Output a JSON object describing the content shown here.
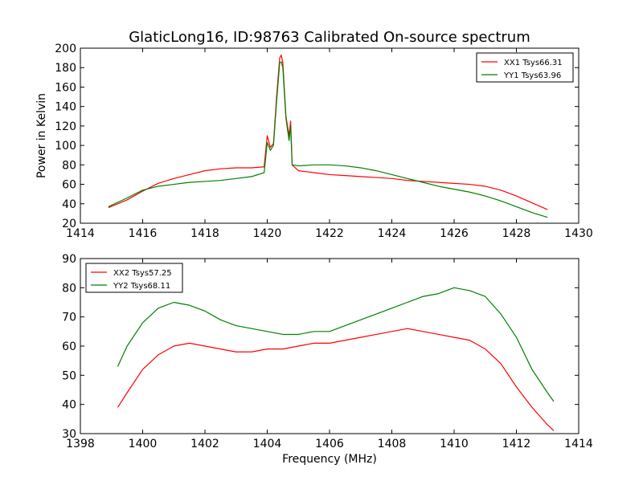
{
  "figure": {
    "title": "GlaticLong16, ID:98763 Calibrated On-source spectrum"
  },
  "chart_data": [
    {
      "type": "line",
      "title": "GlaticLong16, ID:98763 Calibrated On-source spectrum",
      "xlabel": "",
      "ylabel": "Power in Kelvin",
      "xlim": [
        1414,
        1430
      ],
      "ylim": [
        20,
        200
      ],
      "xticks": [
        "1414",
        "1416",
        "1418",
        "1420",
        "1422",
        "1424",
        "1426",
        "1428",
        "1430"
      ],
      "yticks": [
        "20",
        "40",
        "60",
        "80",
        "100",
        "120",
        "140",
        "160",
        "180",
        "200"
      ],
      "grid": false,
      "legend": {
        "position": "top-right"
      },
      "series": [
        {
          "name": "XX1 Tsys66.31",
          "color": "#ff0000",
          "x": [
            1414.9,
            1415.5,
            1416.0,
            1416.5,
            1417.0,
            1417.5,
            1418.0,
            1418.5,
            1419.0,
            1419.5,
            1419.9,
            1420.0,
            1420.1,
            1420.2,
            1420.3,
            1420.4,
            1420.45,
            1420.5,
            1420.6,
            1420.7,
            1420.75,
            1420.8,
            1421.0,
            1421.5,
            1422.0,
            1422.5,
            1423.0,
            1423.5,
            1424.0,
            1424.5,
            1425.0,
            1425.5,
            1426.0,
            1426.5,
            1427.0,
            1427.5,
            1428.0,
            1428.5,
            1429.0
          ],
          "y": [
            36,
            44,
            53,
            61,
            66,
            70,
            74,
            76,
            77,
            77,
            78,
            110,
            98,
            102,
            150,
            190,
            193,
            185,
            130,
            110,
            125,
            80,
            74,
            72,
            70,
            69,
            68,
            67,
            66,
            64,
            63,
            62,
            61,
            60,
            58,
            54,
            48,
            41,
            34
          ]
        },
        {
          "name": "YY1 Tsys63.96",
          "color": "#008000",
          "x": [
            1414.9,
            1415.5,
            1416.0,
            1416.5,
            1417.0,
            1417.5,
            1418.0,
            1418.5,
            1419.0,
            1419.5,
            1419.9,
            1420.0,
            1420.1,
            1420.2,
            1420.3,
            1420.4,
            1420.45,
            1420.5,
            1420.6,
            1420.7,
            1420.75,
            1420.8,
            1421.0,
            1421.5,
            1422.0,
            1422.5,
            1423.0,
            1423.5,
            1424.0,
            1424.5,
            1425.0,
            1425.5,
            1426.0,
            1426.5,
            1427.0,
            1427.5,
            1428.0,
            1428.5,
            1429.0
          ],
          "y": [
            37,
            46,
            54,
            58,
            60,
            62,
            63,
            64,
            66,
            68,
            72,
            103,
            95,
            100,
            145,
            185,
            186,
            180,
            128,
            105,
            120,
            80,
            79,
            80,
            80,
            79,
            77,
            74,
            70,
            66,
            62,
            58,
            55,
            52,
            48,
            43,
            37,
            31,
            26
          ]
        }
      ]
    },
    {
      "type": "line",
      "title": "",
      "xlabel": "Frequency (MHz)",
      "ylabel": "",
      "xlim": [
        1398,
        1414
      ],
      "ylim": [
        30,
        90
      ],
      "xticks": [
        "1398",
        "1400",
        "1402",
        "1404",
        "1406",
        "1408",
        "1410",
        "1412",
        "1414"
      ],
      "yticks": [
        "30",
        "40",
        "50",
        "60",
        "70",
        "80",
        "90"
      ],
      "grid": false,
      "legend": {
        "position": "top-left"
      },
      "series": [
        {
          "name": "XX2 Tsys57.25",
          "color": "#ff0000",
          "x": [
            1399.2,
            1399.5,
            1400.0,
            1400.5,
            1401.0,
            1401.5,
            1402.0,
            1402.5,
            1403.0,
            1403.5,
            1404.0,
            1404.5,
            1405.0,
            1405.5,
            1406.0,
            1406.5,
            1407.0,
            1407.5,
            1408.0,
            1408.5,
            1409.0,
            1409.5,
            1410.0,
            1410.5,
            1411.0,
            1411.5,
            1412.0,
            1412.5,
            1413.0,
            1413.2
          ],
          "y": [
            39,
            44,
            52,
            57,
            60,
            61,
            60,
            59,
            58,
            58,
            59,
            59,
            60,
            61,
            61,
            62,
            63,
            64,
            65,
            66,
            65,
            64,
            63,
            62,
            59,
            54,
            46,
            39,
            33,
            31
          ]
        },
        {
          "name": "YY2 Tsys68.11",
          "color": "#008000",
          "x": [
            1399.2,
            1399.5,
            1400.0,
            1400.5,
            1401.0,
            1401.5,
            1402.0,
            1402.5,
            1403.0,
            1403.5,
            1404.0,
            1404.5,
            1405.0,
            1405.5,
            1406.0,
            1406.5,
            1407.0,
            1407.5,
            1408.0,
            1408.5,
            1409.0,
            1409.5,
            1410.0,
            1410.5,
            1411.0,
            1411.5,
            1412.0,
            1412.5,
            1413.0,
            1413.2
          ],
          "y": [
            53,
            60,
            68,
            73,
            75,
            74,
            72,
            69,
            67,
            66,
            65,
            64,
            64,
            65,
            65,
            67,
            69,
            71,
            73,
            75,
            77,
            78,
            80,
            79,
            77,
            71,
            63,
            52,
            44,
            41
          ]
        }
      ]
    }
  ]
}
